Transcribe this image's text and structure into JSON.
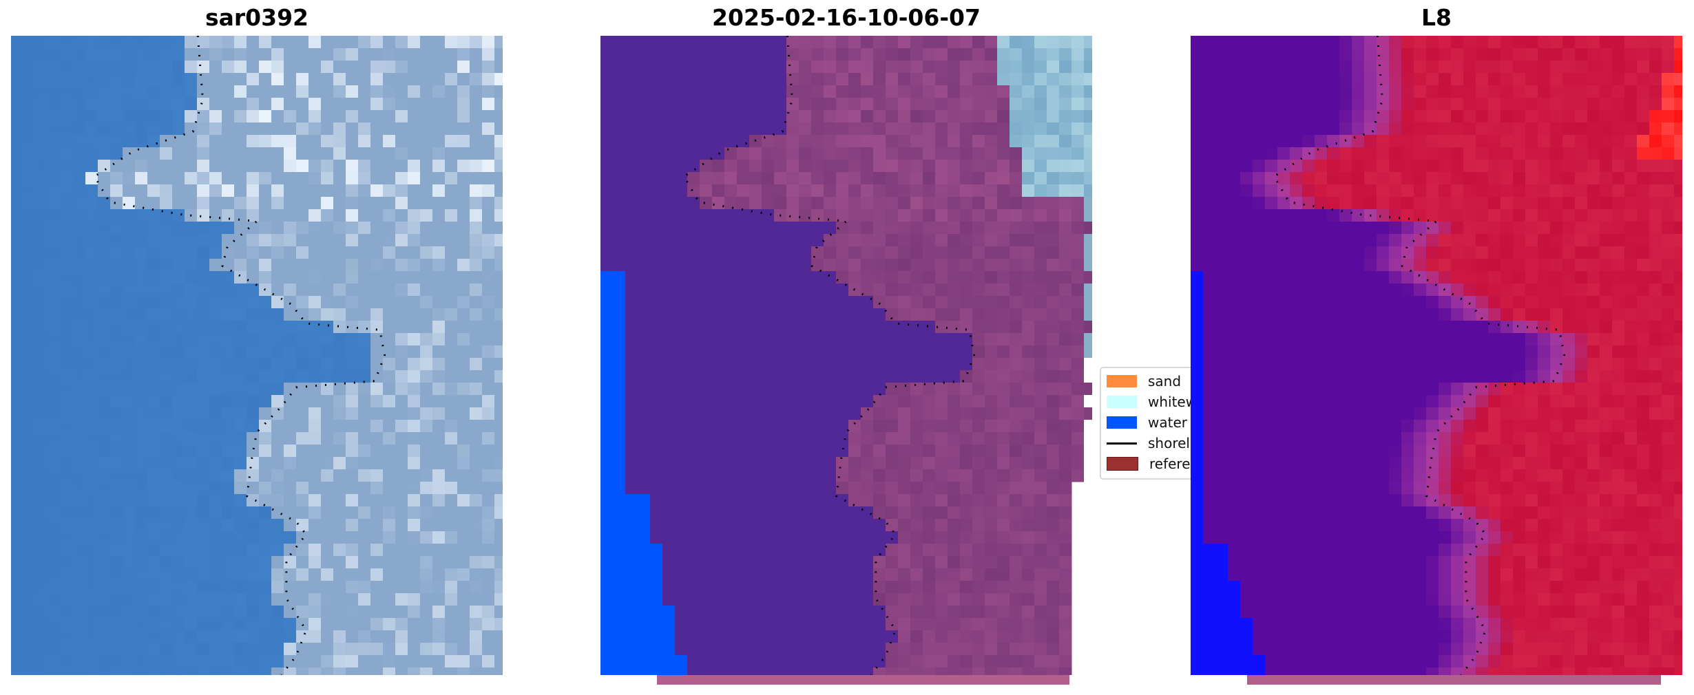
{
  "panels": [
    {
      "title": "sar0392"
    },
    {
      "title": "2025-02-16-10-06-07"
    },
    {
      "title": "L8"
    }
  ],
  "legend": {
    "items": [
      {
        "label": "sand",
        "color": "#ff8c3c"
      },
      {
        "label": "whitewater",
        "color": "#c8ffff"
      },
      {
        "label": "water",
        "color": "#0055ff"
      },
      {
        "label": "shoreline",
        "color": "#000000"
      },
      {
        "label": "reference",
        "color": "#9a3030"
      }
    ]
  },
  "colors": {
    "rgb_water": "#3d7cc4",
    "rgb_land": "#8aa8cc",
    "class_water": "#522896",
    "class_land": "#7d3a7a",
    "index_water": "#5a0a9c",
    "index_land": "#c8103c"
  }
}
